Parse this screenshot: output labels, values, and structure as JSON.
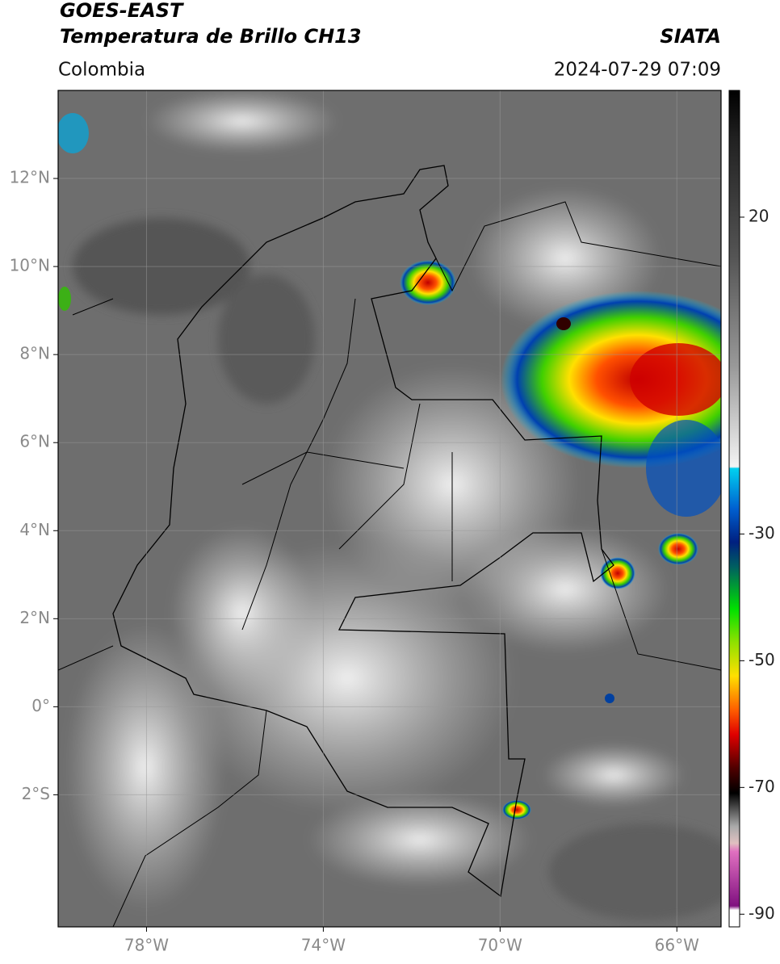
{
  "header": {
    "satellite": "GOES-EAST",
    "product": "Temperatura de Brillo CH13",
    "source": "SIATA",
    "region": "Colombia",
    "datetime": "2024-07-29 07:09"
  },
  "map": {
    "lat_range": [
      -5,
      14
    ],
    "lon_range": [
      -80,
      -65
    ],
    "lat_ticks": [
      {
        "value": 12,
        "label": "12°N"
      },
      {
        "value": 10,
        "label": "10°N"
      },
      {
        "value": 8,
        "label": "8°N"
      },
      {
        "value": 6,
        "label": "6°N"
      },
      {
        "value": 4,
        "label": "4°N"
      },
      {
        "value": 2,
        "label": "2°N"
      },
      {
        "value": 0,
        "label": "0°"
      },
      {
        "value": -2,
        "label": "2°S"
      }
    ],
    "lon_ticks": [
      {
        "value": -78,
        "label": "78°W"
      },
      {
        "value": -74,
        "label": "74°W"
      },
      {
        "value": -70,
        "label": "70°W"
      },
      {
        "value": -66,
        "label": "66°W"
      }
    ]
  },
  "colorbar": {
    "range": [
      -92,
      40
    ],
    "ticks": [
      20,
      -30,
      -50,
      -70,
      -90
    ]
  }
}
